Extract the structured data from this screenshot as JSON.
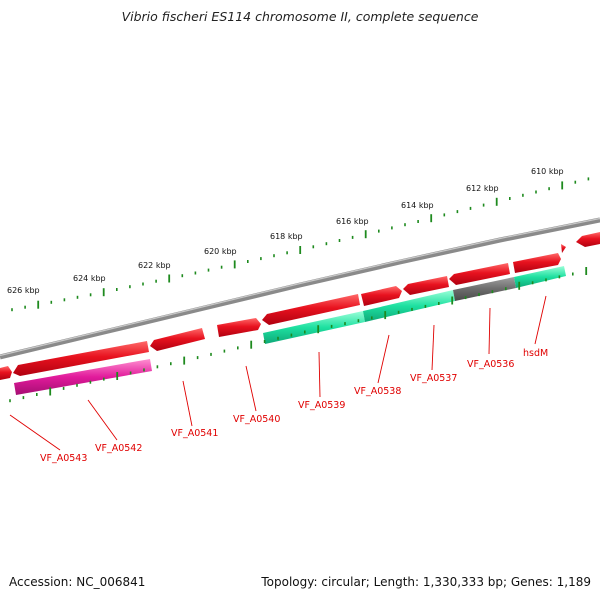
{
  "title": "Vibrio fischeri ES114 chromosome II, complete sequence",
  "accession_label": "Accession: NC_006841",
  "summary_label": "Topology: circular; Length: 1,330,333 bp; Genes: 1,189",
  "colors": {
    "forward_gene": "#e8121f",
    "reverse_gene": "#1de0a0",
    "reverse_gene_alt": "#e11a9b",
    "reverse_gene_unknown": "#6c6c6c",
    "backbone": "#8a8a8a",
    "ticks": "#1e8a1e",
    "labels": "#e00000"
  },
  "scale_labels": [
    "610 kbp",
    "612 kbp",
    "614 kbp",
    "616 kbp",
    "618 kbp",
    "620 kbp",
    "622 kbp",
    "624 kbp",
    "626 kbp"
  ],
  "gene_labels": [
    "hsdM",
    "VF_A0536",
    "VF_A0537",
    "VF_A0538",
    "VF_A0539",
    "VF_A0540",
    "VF_A0541",
    "VF_A0542",
    "VF_A0543"
  ]
}
